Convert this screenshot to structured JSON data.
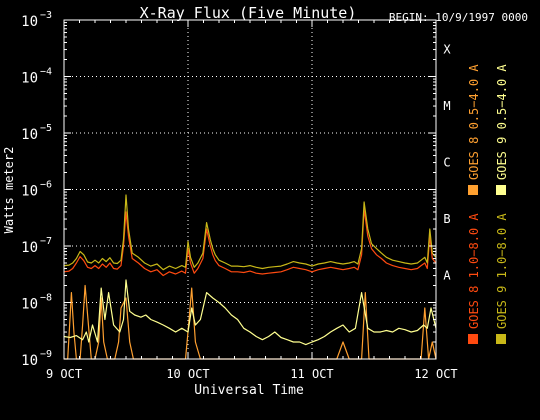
{
  "chart_data": {
    "type": "line",
    "title": "X-Ray Flux (Five Minute)",
    "begin_label": "BEGIN: 10/9/1997 0000",
    "ylabel": "Watts meter2",
    "xlabel": "Universal Time",
    "yscale": "log",
    "ylim": [
      1e-09,
      0.001
    ],
    "xlim": [
      0,
      3
    ],
    "grid": true,
    "legend_position": "right",
    "y_ticks": [
      {
        "value": 1e-09,
        "label": "10",
        "exp": "−9"
      },
      {
        "value": 1e-08,
        "label": "10",
        "exp": "−8"
      },
      {
        "value": 1e-07,
        "label": "10",
        "exp": "−7"
      },
      {
        "value": 1e-06,
        "label": "10",
        "exp": "−6"
      },
      {
        "value": 1e-05,
        "label": "10",
        "exp": "−5"
      },
      {
        "value": 0.0001,
        "label": "10",
        "exp": "−4"
      },
      {
        "value": 0.001,
        "label": "10",
        "exp": "−3"
      }
    ],
    "x_ticks": [
      {
        "value": 0,
        "label": "9 OCT"
      },
      {
        "value": 1,
        "label": "10 OCT"
      },
      {
        "value": 2,
        "label": "11 OCT"
      },
      {
        "value": 3,
        "label": "12 OCT"
      }
    ],
    "flare_classes": [
      {
        "label": "A",
        "value": 3.16e-08
      },
      {
        "label": "B",
        "value": 3.16e-07
      },
      {
        "label": "C",
        "value": 3.16e-06
      },
      {
        "label": "M",
        "value": 3.16e-05
      },
      {
        "label": "X",
        "value": 0.000316
      }
    ],
    "legend": [
      {
        "label": "GOES 8 1.0−8.0 A",
        "color": "#ff4a10"
      },
      {
        "label": "GOES 8 0.5−4.0 A",
        "color": "#ffa030"
      },
      {
        "label": "GOES 9 1.0−8.0 A",
        "color": "#c8b818"
      },
      {
        "label": "GOES 9 0.5−4.0 A",
        "color": "#ffff90"
      }
    ],
    "series": [
      {
        "name": "GOES 8 1.0−8.0 A",
        "color": "#ff4a10",
        "x": [
          0,
          0.04,
          0.07,
          0.1,
          0.13,
          0.16,
          0.19,
          0.22,
          0.25,
          0.28,
          0.31,
          0.34,
          0.37,
          0.4,
          0.43,
          0.46,
          0.48,
          0.5,
          0.52,
          0.55,
          0.6,
          0.65,
          0.7,
          0.75,
          0.8,
          0.85,
          0.9,
          0.95,
          0.98,
          1.0,
          1.02,
          1.05,
          1.08,
          1.12,
          1.15,
          1.18,
          1.2,
          1.22,
          1.25,
          1.3,
          1.35,
          1.4,
          1.45,
          1.5,
          1.55,
          1.6,
          1.65,
          1.7,
          1.75,
          1.8,
          1.85,
          1.9,
          1.95,
          2.0,
          2.05,
          2.1,
          2.15,
          2.2,
          2.25,
          2.3,
          2.34,
          2.37,
          2.4,
          2.42,
          2.45,
          2.48,
          2.52,
          2.56,
          2.6,
          2.65,
          2.7,
          2.75,
          2.8,
          2.85,
          2.88,
          2.91,
          2.93,
          2.95,
          2.97,
          3.0
        ],
        "y": [
          3.5e-08,
          3.6e-08,
          4e-08,
          5e-08,
          6.5e-08,
          5.5e-08,
          4.2e-08,
          4e-08,
          4.5e-08,
          4e-08,
          4.8e-08,
          4.2e-08,
          5e-08,
          4e-08,
          3.9e-08,
          4.5e-08,
          1e-07,
          4e-07,
          1.5e-07,
          6e-08,
          5e-08,
          4e-08,
          3.5e-08,
          3.8e-08,
          3e-08,
          3.5e-08,
          3.2e-08,
          3.6e-08,
          3.3e-08,
          9e-08,
          5e-08,
          3.3e-08,
          4e-08,
          6e-08,
          2e-07,
          1e-07,
          7e-08,
          5.5e-08,
          4.5e-08,
          4e-08,
          3.5e-08,
          3.5e-08,
          3.4e-08,
          3.6e-08,
          3.3e-08,
          3.2e-08,
          3.3e-08,
          3.4e-08,
          3.5e-08,
          3.8e-08,
          4.2e-08,
          4e-08,
          3.8e-08,
          3.5e-08,
          3.8e-08,
          4e-08,
          4.2e-08,
          4e-08,
          3.8e-08,
          4e-08,
          4.2e-08,
          3.8e-08,
          7e-08,
          4.5e-07,
          1.5e-07,
          9e-08,
          7e-08,
          6e-08,
          5e-08,
          4.5e-08,
          4.2e-08,
          4e-08,
          3.8e-08,
          4e-08,
          4.5e-08,
          5e-08,
          4e-08,
          1.5e-07,
          6e-08,
          5e-08
        ]
      },
      {
        "name": "GOES 8 0.5−4.0 A",
        "color": "#ffa030",
        "x": [
          0,
          0.03,
          0.05,
          0.06,
          0.08,
          0.1,
          0.13,
          0.15,
          0.17,
          0.19,
          0.22,
          0.25,
          0.28,
          0.3,
          0.32,
          0.35,
          0.38,
          0.41,
          0.44,
          0.46,
          0.5,
          0.53,
          0.56,
          0.6,
          0.65,
          0.7,
          0.75,
          0.8,
          0.83,
          0.86,
          0.89,
          0.92,
          0.95,
          0.98,
          1.0,
          1.03,
          1.06,
          1.1,
          1.15,
          1.2,
          1.3,
          1.4,
          1.5,
          1.6,
          1.7,
          1.8,
          1.9,
          2.0,
          2.1,
          2.2,
          2.25,
          2.3,
          2.35,
          2.4,
          2.43,
          2.46,
          2.5,
          2.6,
          2.7,
          2.8,
          2.85,
          2.88,
          2.91,
          2.94,
          2.97,
          3.0
        ],
        "y": [
          1e-09,
          1e-09,
          6e-09,
          1.5e-08,
          3e-09,
          1e-09,
          1e-09,
          4e-09,
          2e-08,
          6e-09,
          1e-09,
          1e-09,
          2e-09,
          1.2e-08,
          2e-09,
          1e-09,
          1e-09,
          1e-09,
          2e-09,
          8e-09,
          1.2e-08,
          2e-09,
          1e-09,
          1e-09,
          1e-09,
          1e-09,
          1e-09,
          1e-09,
          1e-09,
          1e-09,
          1e-09,
          1e-09,
          1e-09,
          1e-09,
          3e-09,
          1.8e-08,
          2e-09,
          1e-09,
          1e-09,
          1e-09,
          1e-09,
          1e-09,
          1e-09,
          1e-09,
          1e-09,
          1e-09,
          1e-09,
          1e-09,
          1e-09,
          1e-09,
          2e-09,
          1e-09,
          1e-09,
          1e-09,
          1.5e-08,
          1e-09,
          1e-09,
          1e-09,
          1e-09,
          1e-09,
          1e-09,
          1e-09,
          8e-09,
          1e-09,
          2e-09,
          1e-09
        ]
      },
      {
        "name": "GOES 9 1.0−8.0 A",
        "color": "#c8b818",
        "x": [
          0,
          0.04,
          0.07,
          0.1,
          0.13,
          0.16,
          0.19,
          0.22,
          0.25,
          0.28,
          0.31,
          0.34,
          0.37,
          0.4,
          0.43,
          0.46,
          0.48,
          0.5,
          0.52,
          0.55,
          0.6,
          0.65,
          0.7,
          0.75,
          0.8,
          0.85,
          0.9,
          0.95,
          0.98,
          1.0,
          1.02,
          1.05,
          1.08,
          1.12,
          1.15,
          1.18,
          1.2,
          1.22,
          1.25,
          1.3,
          1.35,
          1.4,
          1.45,
          1.5,
          1.55,
          1.6,
          1.65,
          1.7,
          1.75,
          1.8,
          1.85,
          1.9,
          1.95,
          2.0,
          2.05,
          2.1,
          2.15,
          2.2,
          2.25,
          2.3,
          2.34,
          2.37,
          2.4,
          2.42,
          2.45,
          2.48,
          2.52,
          2.56,
          2.6,
          2.65,
          2.7,
          2.75,
          2.8,
          2.85,
          2.88,
          2.91,
          2.93,
          2.95,
          2.97,
          3.0
        ],
        "y": [
          4.5e-08,
          4.6e-08,
          5e-08,
          6e-08,
          8e-08,
          7e-08,
          5.2e-08,
          5e-08,
          5.6e-08,
          5e-08,
          6e-08,
          5.3e-08,
          6.2e-08,
          5e-08,
          4.9e-08,
          5.6e-08,
          1.3e-07,
          8e-07,
          2e-07,
          7.5e-08,
          6.3e-08,
          5e-08,
          4.4e-08,
          4.8e-08,
          3.8e-08,
          4.4e-08,
          4e-08,
          4.5e-08,
          4.2e-08,
          1.2e-07,
          6.3e-08,
          4.2e-08,
          5e-08,
          7.5e-08,
          2.6e-07,
          1.3e-07,
          9e-08,
          7e-08,
          5.6e-08,
          5e-08,
          4.4e-08,
          4.4e-08,
          4.3e-08,
          4.5e-08,
          4.2e-08,
          4e-08,
          4.2e-08,
          4.3e-08,
          4.4e-08,
          4.8e-08,
          5.3e-08,
          5e-08,
          4.8e-08,
          4.4e-08,
          4.8e-08,
          5e-08,
          5.3e-08,
          5e-08,
          4.8e-08,
          5e-08,
          5.3e-08,
          4.8e-08,
          9e-08,
          6e-07,
          2e-07,
          1.1e-07,
          9e-08,
          7.5e-08,
          6.3e-08,
          5.6e-08,
          5.3e-08,
          5e-08,
          4.8e-08,
          5e-08,
          5.6e-08,
          6.3e-08,
          5e-08,
          2e-07,
          7.5e-08,
          6.3e-08
        ]
      },
      {
        "name": "GOES 9 0.5−4.0 A",
        "color": "#ffff90",
        "x": [
          0,
          0.05,
          0.1,
          0.15,
          0.18,
          0.2,
          0.23,
          0.27,
          0.3,
          0.33,
          0.36,
          0.4,
          0.45,
          0.48,
          0.5,
          0.53,
          0.57,
          0.62,
          0.66,
          0.7,
          0.75,
          0.8,
          0.85,
          0.9,
          0.95,
          1.0,
          1.03,
          1.06,
          1.1,
          1.15,
          1.2,
          1.25,
          1.3,
          1.35,
          1.4,
          1.45,
          1.5,
          1.55,
          1.6,
          1.65,
          1.7,
          1.75,
          1.8,
          1.85,
          1.9,
          1.95,
          2.0,
          2.05,
          2.1,
          2.15,
          2.2,
          2.25,
          2.3,
          2.35,
          2.4,
          2.45,
          2.5,
          2.55,
          2.6,
          2.65,
          2.7,
          2.75,
          2.8,
          2.85,
          2.9,
          2.93,
          2.96,
          3.0
        ],
        "y": [
          2.5e-09,
          2.4e-09,
          2.6e-09,
          2.2e-09,
          3e-09,
          2e-09,
          4e-09,
          2e-09,
          1.8e-08,
          5e-09,
          1.5e-08,
          4e-09,
          3e-09,
          5e-09,
          2.5e-08,
          7e-09,
          6e-09,
          5.5e-09,
          6e-09,
          5e-09,
          4.5e-09,
          4e-09,
          3.5e-09,
          3e-09,
          3.5e-09,
          3e-09,
          8e-09,
          4e-09,
          5e-09,
          1.5e-08,
          1.2e-08,
          1e-08,
          8e-09,
          6e-09,
          5e-09,
          3.5e-09,
          3e-09,
          2.5e-09,
          2.2e-09,
          2.5e-09,
          3e-09,
          2.4e-09,
          2.2e-09,
          2e-09,
          2e-09,
          1.8e-09,
          2e-09,
          2.2e-09,
          2.5e-09,
          3e-09,
          3.5e-09,
          4e-09,
          3e-09,
          3.5e-09,
          1.5e-08,
          3.5e-09,
          3e-09,
          3e-09,
          3.2e-09,
          3e-09,
          3.5e-09,
          3.3e-09,
          3e-09,
          3.2e-09,
          4e-09,
          3.5e-09,
          8e-09,
          3.5e-09
        ]
      }
    ]
  }
}
